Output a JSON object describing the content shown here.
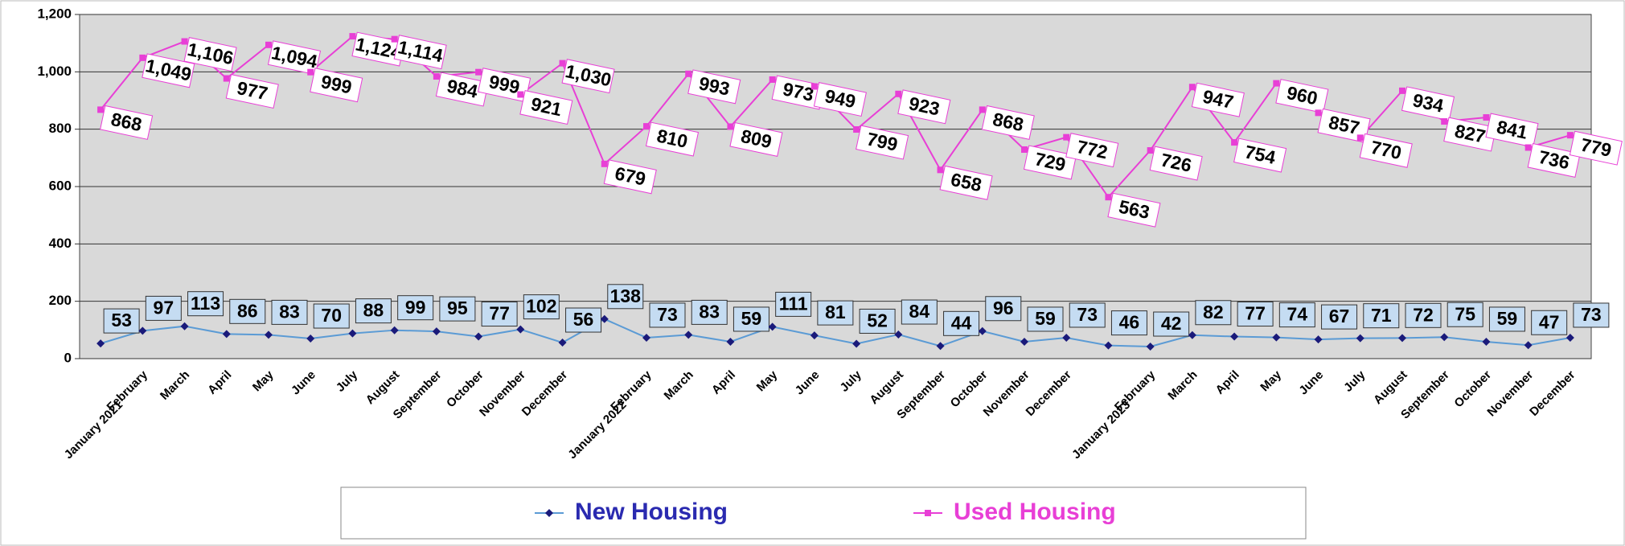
{
  "chart_data": {
    "type": "line",
    "categories": [
      "January 2021",
      "February",
      "March",
      "April",
      "May",
      "June",
      "July",
      "August",
      "September",
      "October",
      "November",
      "December",
      "January 2022",
      "February",
      "March",
      "April",
      "May",
      "June",
      "July",
      "August",
      "September",
      "October",
      "November",
      "December",
      "January 2023",
      "February",
      "March",
      "April",
      "May",
      "June",
      "July",
      "August",
      "September",
      "October",
      "November",
      "December"
    ],
    "series": [
      {
        "name": "New Housing",
        "color": "#1a1a7a",
        "line_color": "#5b9bd5",
        "label_color": "#2a2ab0",
        "values": [
          53,
          97,
          113,
          86,
          83,
          70,
          88,
          99,
          95,
          77,
          102,
          56,
          138,
          73,
          83,
          59,
          111,
          81,
          52,
          84,
          44,
          96,
          59,
          73,
          46,
          42,
          82,
          77,
          74,
          67,
          71,
          72,
          75,
          59,
          47,
          73
        ]
      },
      {
        "name": "Used Housing",
        "color": "#e83fd6",
        "line_color": "#e83fd6",
        "label_color": "#e83fd6",
        "values": [
          868,
          1049,
          1106,
          977,
          1094,
          999,
          1124,
          1114,
          984,
          999,
          921,
          1030,
          679,
          810,
          993,
          809,
          973,
          949,
          799,
          923,
          658,
          868,
          729,
          772,
          563,
          726,
          947,
          754,
          960,
          857,
          770,
          934,
          827,
          841,
          736,
          779
        ],
        "value_labels": [
          "868",
          "1,049",
          "1,106",
          "977",
          "1,094",
          "999",
          "1,124",
          "1,114",
          "984",
          "999",
          "921",
          "1,030",
          "679",
          "810",
          "993",
          "809",
          "973",
          "949",
          "799",
          "923",
          "658",
          "868",
          "729",
          "772",
          "563",
          "726",
          "947",
          "754",
          "960",
          "857",
          "770",
          "934",
          "827",
          "841",
          "736",
          "779"
        ]
      }
    ],
    "ylim": [
      0,
      1200
    ],
    "yticks": [
      0,
      200,
      400,
      600,
      800,
      {
        "value": 1000,
        "label": "1,000"
      },
      {
        "value": 1200,
        "label": "1,200"
      }
    ],
    "grid": true,
    "legend": "bottom"
  }
}
